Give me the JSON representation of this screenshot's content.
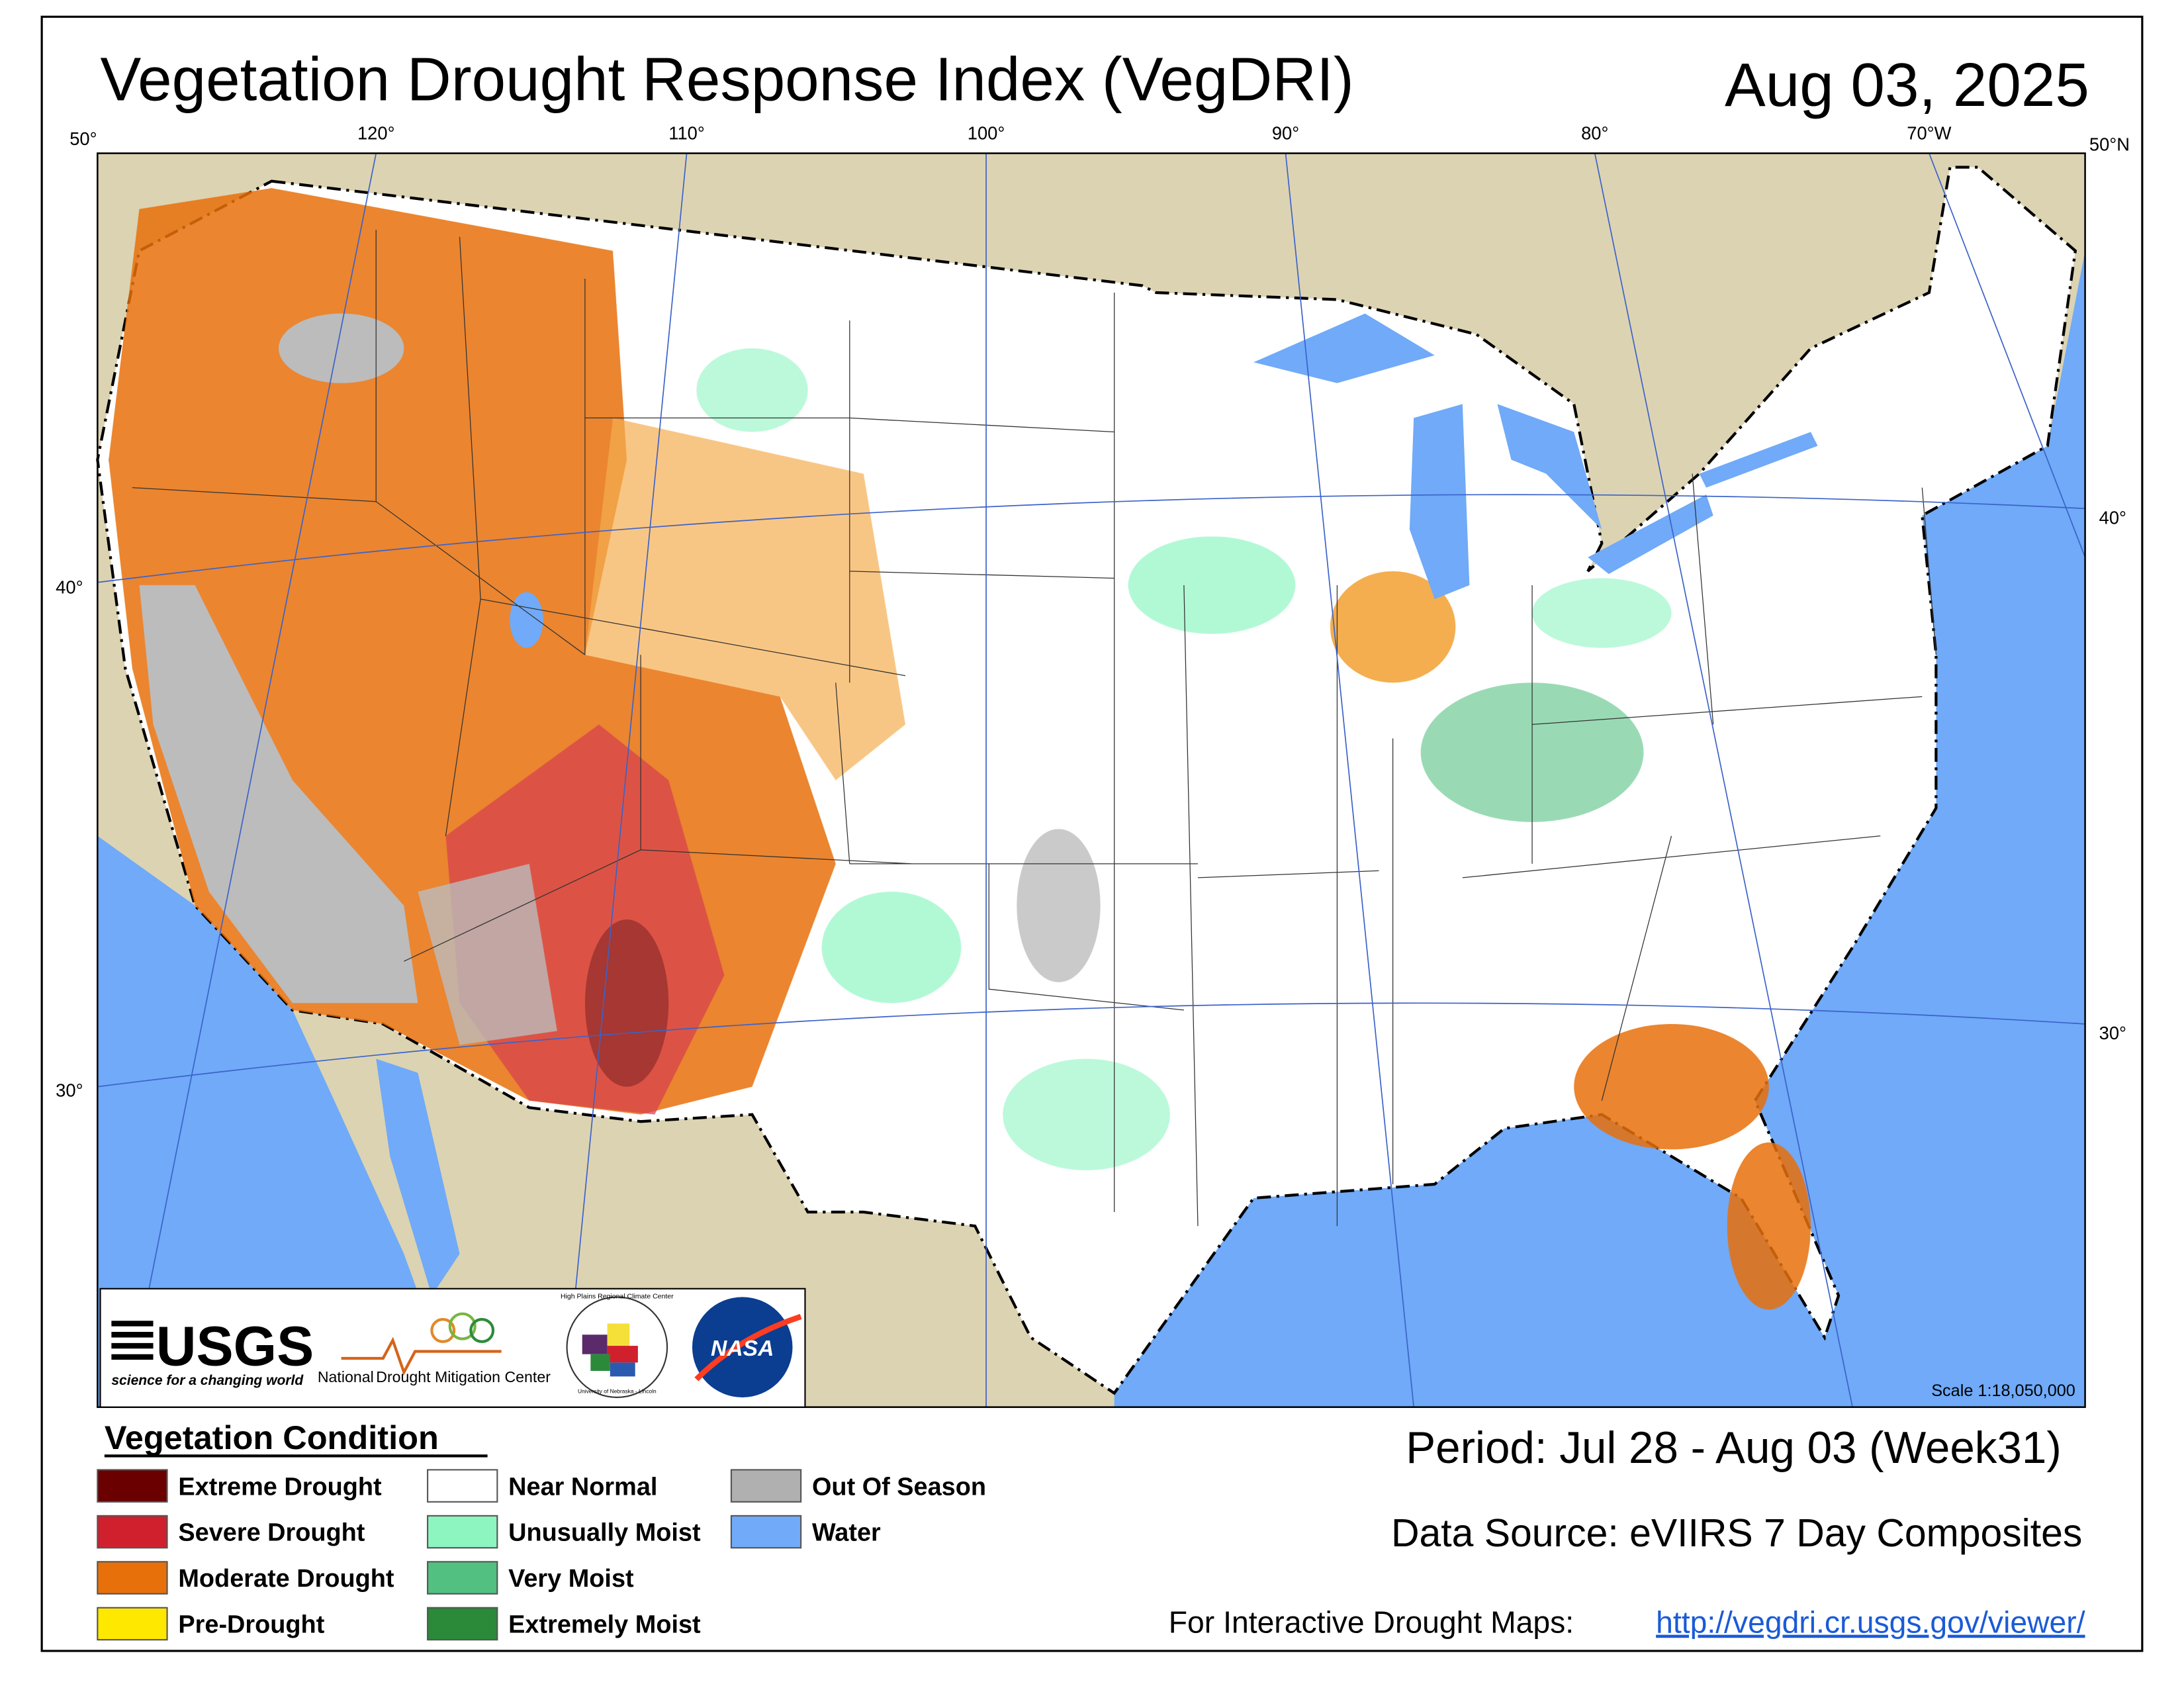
{
  "header": {
    "title": "Vegetation Drought Response Index (VegDRI)",
    "date": "Aug 03, 2025"
  },
  "graticule": {
    "labels": [
      "50°",
      "120°",
      "110°",
      "100°",
      "90°",
      "80°",
      "70°W",
      "50°N",
      "40°",
      "30°",
      "40°",
      "30°"
    ]
  },
  "map": {
    "scale": "Scale 1:18,050,000"
  },
  "logos": {
    "usgs": "USGS",
    "usgs_tagline": "science for a changing world",
    "ndmc_prefix": "National",
    "ndmc": "Drought Mitigation Center",
    "hprcc": "High Plains Regional Climate Center",
    "hprcc_university": "University of Nebraska - Lincoln",
    "nasa": "NASA"
  },
  "legend": {
    "title": "Vegetation Condition",
    "items": [
      {
        "label": "Extreme Drought",
        "color": "#6b0000"
      },
      {
        "label": "Severe Drought",
        "color": "#d0202e"
      },
      {
        "label": "Moderate Drought",
        "color": "#e8700a"
      },
      {
        "label": "Pre-Drought",
        "color": "#ffe800"
      },
      {
        "label": "Near Normal",
        "color": "#ffffff"
      },
      {
        "label": "Unusually Moist",
        "color": "#8cf5c0"
      },
      {
        "label": "Very Moist",
        "color": "#52c080"
      },
      {
        "label": "Extremely Moist",
        "color": "#2a8a3a"
      },
      {
        "label": "Out Of Season",
        "color": "#b0b0b0"
      },
      {
        "label": "Water",
        "color": "#70aaf8"
      }
    ]
  },
  "footer": {
    "period": "Period:  Jul 28 - Aug 03 (Week31)",
    "source": "Data Source:  eVIIRS 7 Day Composites",
    "link_label": "For Interactive Drought Maps:",
    "link": "http://vegdri.cr.usgs.gov/viewer/"
  }
}
